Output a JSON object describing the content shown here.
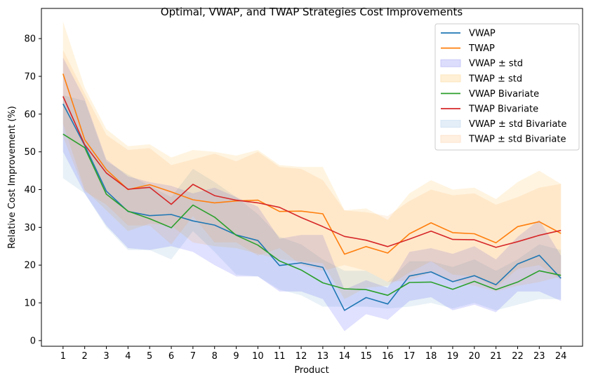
{
  "chart_data": {
    "type": "line",
    "title": "Optimal, VWAP, and TWAP Strategies Cost Improvements",
    "xlabel": "Product",
    "ylabel": "Relative Cost Improvement (%)",
    "xlim": [
      0.0,
      25.0
    ],
    "ylim": [
      -1.5,
      88
    ],
    "x_ticks": [
      1,
      2,
      3,
      4,
      5,
      6,
      7,
      8,
      9,
      10,
      11,
      12,
      13,
      14,
      15,
      16,
      17,
      18,
      19,
      20,
      21,
      22,
      23,
      24
    ],
    "y_ticks": [
      0,
      10,
      20,
      30,
      40,
      50,
      60,
      70,
      80
    ],
    "grid": false,
    "legend_position": "top-right",
    "series": [
      {
        "name": "VWAP",
        "color": "#1f77b4",
        "values": [
          62.7,
          51.7,
          39.6,
          34.2,
          33.1,
          33.4,
          31.7,
          30.6,
          28.0,
          26.5,
          19.9,
          20.6,
          19.4,
          8.0,
          11.4,
          9.7,
          17.1,
          18.2,
          15.6,
          17.2,
          14.8,
          20.3,
          22.6,
          16.5
        ]
      },
      {
        "name": "TWAP",
        "color": "#ff7f0e",
        "values": [
          70.7,
          53.2,
          45.3,
          40.0,
          41.3,
          39.4,
          37.3,
          36.5,
          37.0,
          37.2,
          34.2,
          34.3,
          33.6,
          22.9,
          24.9,
          23.2,
          28.3,
          31.2,
          28.6,
          28.3,
          25.9,
          30.2,
          31.5,
          28.4
        ]
      },
      {
        "name": "VWAP Bivariate",
        "color": "#2ca02c",
        "values": [
          54.7,
          51.1,
          38.8,
          34.3,
          32.3,
          29.9,
          35.9,
          32.7,
          27.9,
          25.3,
          21.1,
          18.7,
          15.3,
          13.7,
          13.5,
          12.0,
          15.4,
          15.5,
          13.6,
          15.7,
          13.5,
          15.5,
          18.5,
          17.3
        ]
      },
      {
        "name": "TWAP Bivariate",
        "color": "#d62728",
        "values": [
          64.7,
          51.9,
          44.4,
          40.1,
          40.6,
          36.1,
          41.4,
          38.4,
          37.2,
          36.5,
          35.3,
          32.6,
          30.2,
          27.6,
          26.6,
          24.9,
          26.9,
          29.0,
          26.8,
          26.7,
          24.7,
          26.2,
          27.9,
          29.2
        ]
      }
    ],
    "bands": [
      {
        "name": "VWAP ± std",
        "color": "#0000ff",
        "opacity": 0.12,
        "lower": [
          50.0,
          39.0,
          30.5,
          24.5,
          24.0,
          25.0,
          23.5,
          20.0,
          17.0,
          17.0,
          13.0,
          13.0,
          11.0,
          2.5,
          7.0,
          5.5,
          10.5,
          11.5,
          8.0,
          9.5,
          7.5,
          13.0,
          13.0,
          10.5
        ],
        "upper": [
          75.0,
          64.0,
          48.0,
          43.5,
          42.0,
          41.0,
          39.0,
          40.5,
          38.0,
          35.5,
          27.0,
          28.0,
          28.0,
          13.5,
          16.0,
          14.0,
          23.5,
          24.5,
          23.0,
          25.0,
          21.5,
          27.5,
          32.0,
          22.5
        ]
      },
      {
        "name": "TWAP ± std",
        "color": "#ffa500",
        "opacity": 0.12,
        "lower": [
          57.5,
          40.0,
          34.5,
          29.0,
          31.0,
          30.5,
          26.0,
          25.0,
          24.5,
          23.0,
          21.5,
          21.0,
          20.5,
          11.0,
          14.0,
          14.5,
          18.0,
          21.0,
          17.5,
          17.0,
          14.0,
          19.0,
          20.0,
          16.0
        ],
        "upper": [
          84.5,
          67.0,
          56.0,
          51.5,
          52.0,
          48.5,
          50.5,
          50.0,
          49.0,
          50.5,
          46.5,
          46.0,
          46.0,
          34.5,
          35.0,
          32.0,
          39.0,
          42.5,
          40.0,
          40.5,
          37.5,
          42.0,
          45.0,
          41.5
        ]
      },
      {
        "name": "VWAP ± std Bivariate",
        "color": "#1f77b4",
        "opacity": 0.1,
        "lower": [
          43.0,
          39.0,
          30.0,
          24.0,
          24.0,
          21.5,
          29.0,
          23.5,
          17.5,
          17.0,
          13.5,
          12.0,
          9.0,
          9.0,
          9.0,
          8.5,
          9.0,
          10.0,
          8.5,
          10.0,
          8.0,
          9.5,
          11.0,
          11.0
        ],
        "upper": [
          65.0,
          63.5,
          47.5,
          44.0,
          41.0,
          38.0,
          45.5,
          42.0,
          38.0,
          33.5,
          27.5,
          25.5,
          21.5,
          18.5,
          18.5,
          15.5,
          21.0,
          21.0,
          19.5,
          21.5,
          18.5,
          21.5,
          25.5,
          24.0
        ]
      },
      {
        "name": "TWAP ± std Bivariate",
        "color": "#ff7f0e",
        "opacity": 0.1,
        "lower": [
          54.0,
          39.5,
          36.0,
          30.5,
          30.5,
          25.5,
          33.0,
          26.0,
          26.0,
          22.5,
          24.5,
          20.0,
          18.5,
          20.0,
          18.5,
          15.5,
          16.0,
          18.0,
          15.5,
          14.5,
          13.0,
          14.5,
          15.5,
          17.0
        ]
      },
      {
        "name": "TWAP ± std Bivariate",
        "color": "#ff7f0e",
        "opacity": 0.1,
        "upper": [
          77.0,
          65.5,
          54.5,
          50.5,
          51.0,
          46.5,
          48.0,
          49.5,
          47.5,
          50.0,
          46.0,
          45.5,
          42.5,
          34.5,
          34.0,
          33.0,
          37.0,
          40.0,
          38.5,
          39.0,
          36.0,
          38.0,
          40.5,
          41.5
        ]
      }
    ],
    "legend": [
      {
        "label": "VWAP",
        "kind": "line",
        "color": "#1f77b4"
      },
      {
        "label": "TWAP",
        "kind": "line",
        "color": "#ff7f0e"
      },
      {
        "label": "VWAP ± std",
        "kind": "patch",
        "color": "#dcdcfc",
        "edge": "#c8c8f8"
      },
      {
        "label": "TWAP ± std",
        "kind": "patch",
        "color": "#fff0d6",
        "edge": "#fde6bf"
      },
      {
        "label": "VWAP Bivariate",
        "kind": "line",
        "color": "#2ca02c"
      },
      {
        "label": "TWAP Bivariate",
        "kind": "line",
        "color": "#d62728"
      },
      {
        "label": "VWAP ± std Bivariate",
        "kind": "patch",
        "color": "#e3eef8",
        "edge": "#d4e4f4"
      },
      {
        "label": "TWAP ± std Bivariate",
        "kind": "patch",
        "color": "#fff0e0",
        "edge": "#fde3cd"
      }
    ]
  }
}
